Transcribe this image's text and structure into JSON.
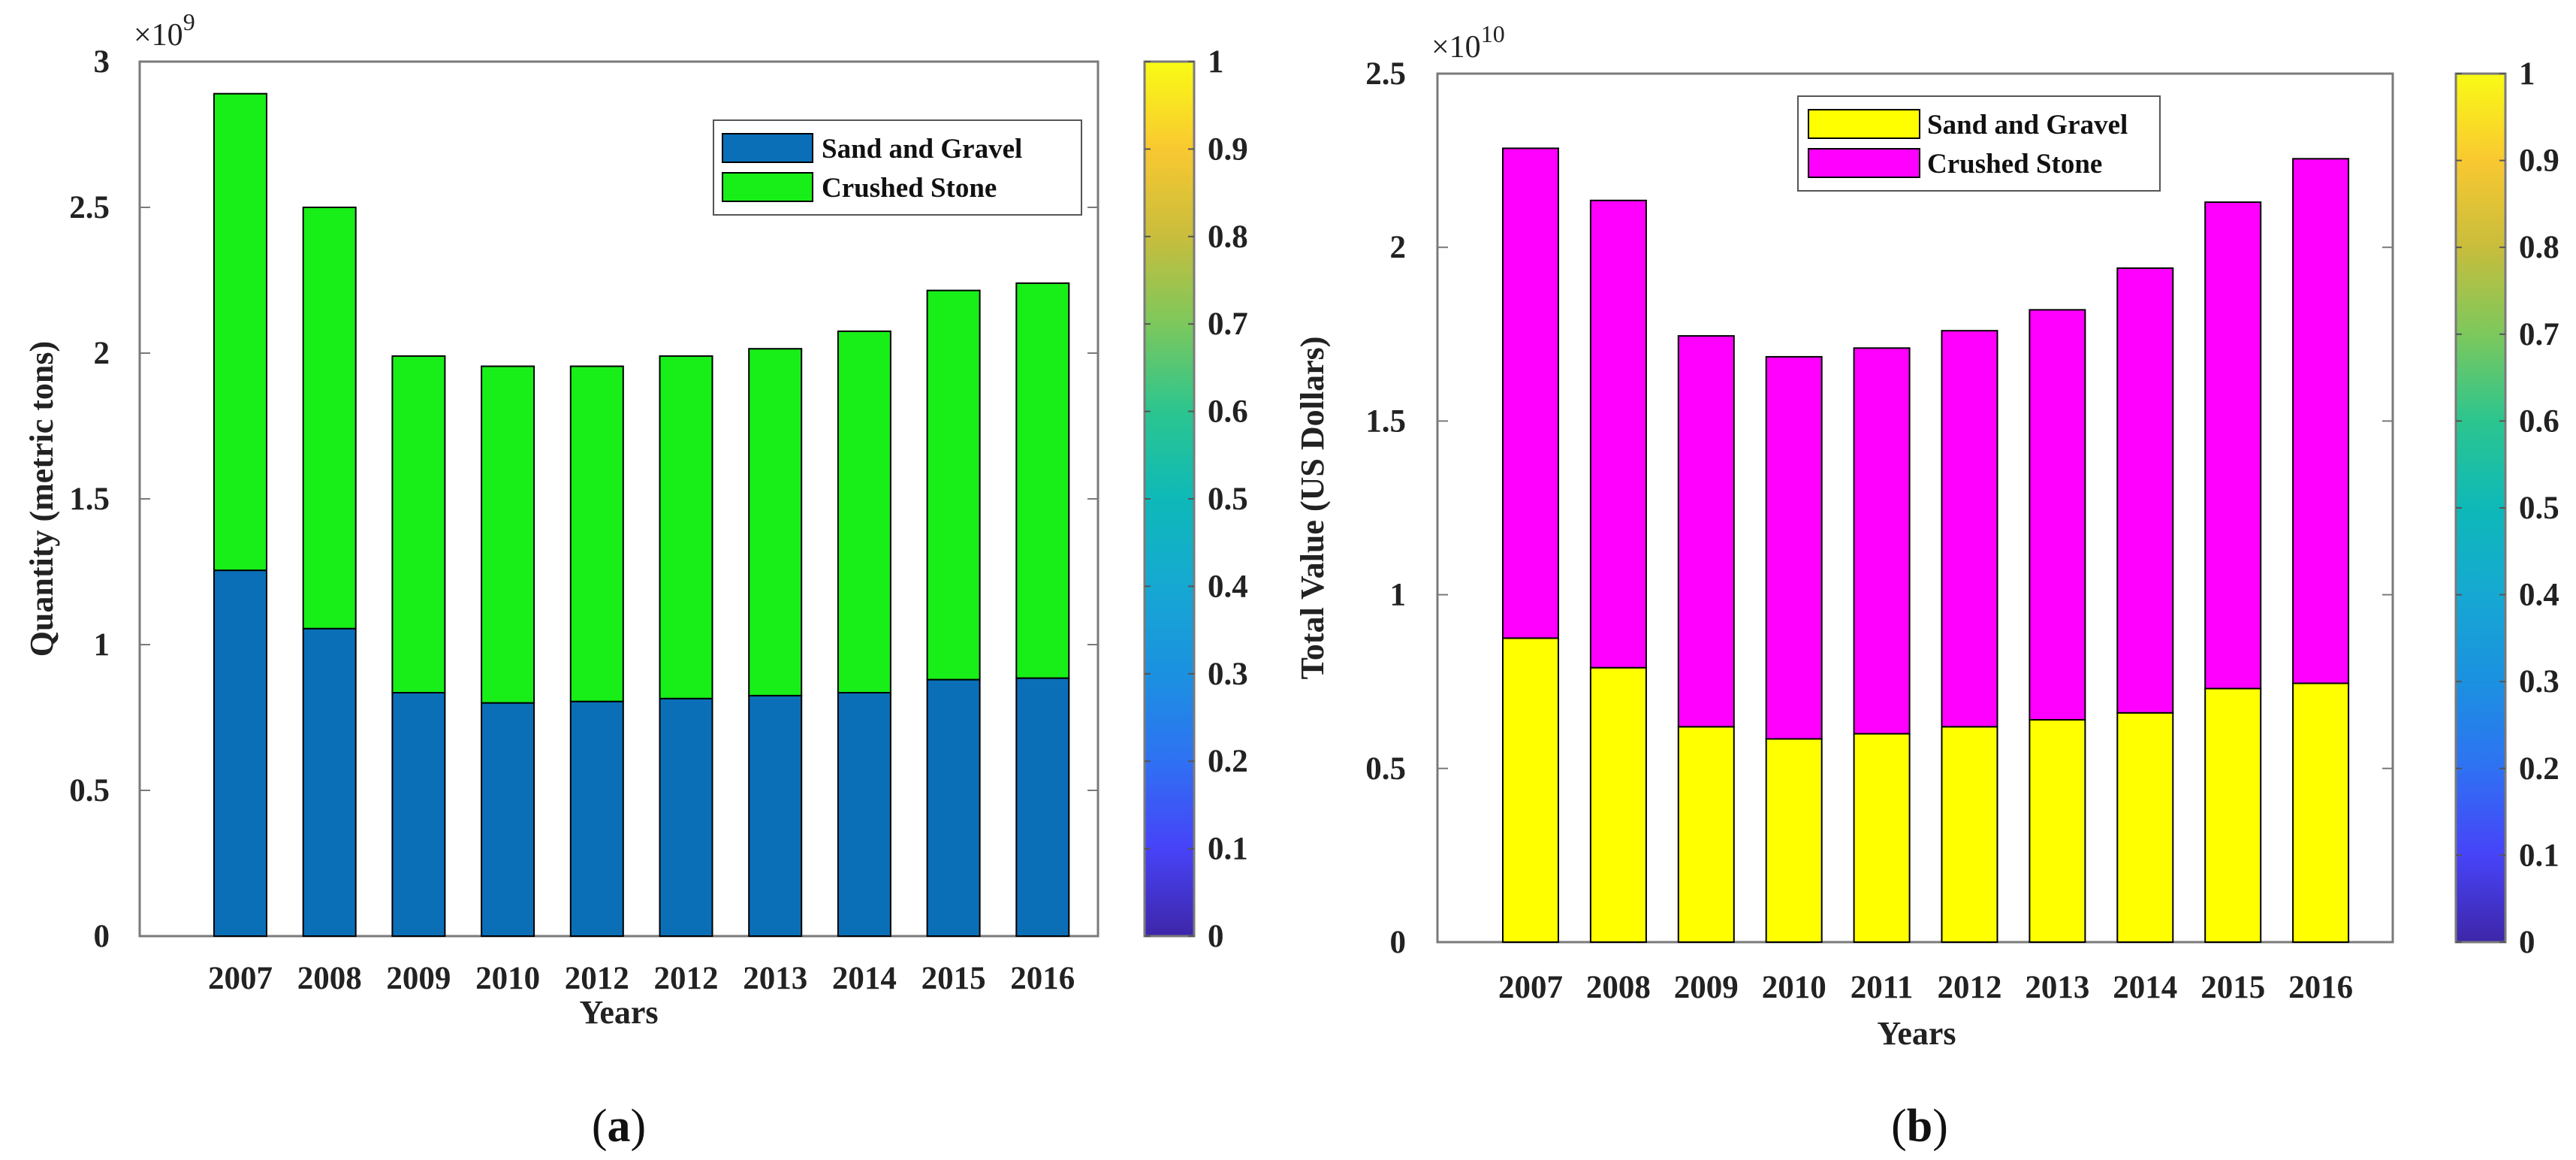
{
  "chart_data": [
    {
      "type": "bar",
      "stacked": true,
      "caption_open": "(",
      "caption_letter": "a",
      "caption_close": ")",
      "title": "",
      "xlabel": "Years",
      "ylabel": "Quantity (metric tons)",
      "y_scale_label": "×10",
      "y_scale_exponent": "9",
      "ylim": [
        0,
        3
      ],
      "yticks": [
        "0",
        "0.5",
        "1",
        "1.5",
        "2",
        "2.5",
        "3"
      ],
      "categories": [
        "2007",
        "2008",
        "2009",
        "2010",
        "2012",
        "2012",
        "2013",
        "2014",
        "2015",
        "2016"
      ],
      "series": [
        {
          "name": "Sand and Gravel",
          "color": "#0b6fb8",
          "values": [
            1.255,
            1.055,
            0.835,
            0.8,
            0.805,
            0.815,
            0.825,
            0.835,
            0.88,
            0.885
          ]
        },
        {
          "name": "Crushed Stone",
          "color": "#18ee18",
          "values": [
            1.635,
            1.445,
            1.155,
            1.155,
            1.15,
            1.175,
            1.19,
            1.24,
            1.335,
            1.355
          ]
        }
      ],
      "legend_position": "top-right",
      "colorbar": {
        "ticks": [
          "0",
          "0.1",
          "0.2",
          "0.3",
          "0.4",
          "0.5",
          "0.6",
          "0.7",
          "0.8",
          "0.9",
          "1"
        ]
      }
    },
    {
      "type": "bar",
      "stacked": true,
      "caption_open": "(",
      "caption_letter": "b",
      "caption_close": ")",
      "title": "",
      "xlabel": "Years",
      "ylabel": "Total Value (US Dollars)",
      "y_scale_label": "×10",
      "y_scale_exponent": "10",
      "ylim": [
        0,
        2.5
      ],
      "yticks": [
        "0",
        "0.5",
        "1",
        "1.5",
        "2",
        "2.5"
      ],
      "categories": [
        "2007",
        "2008",
        "2009",
        "2010",
        "2011",
        "2012",
        "2013",
        "2014",
        "2015",
        "2016"
      ],
      "series": [
        {
          "name": "Sand and Gravel",
          "color": "#ffff00",
          "values": [
            0.875,
            0.79,
            0.62,
            0.585,
            0.6,
            0.62,
            0.64,
            0.66,
            0.73,
            0.745
          ]
        },
        {
          "name": "Crushed Stone",
          "color": "#ff00ff",
          "values": [
            1.41,
            1.345,
            1.125,
            1.1,
            1.11,
            1.14,
            1.18,
            1.28,
            1.4,
            1.51
          ]
        }
      ],
      "legend_position": "top",
      "colorbar": {
        "ticks": [
          "0",
          "0.1",
          "0.2",
          "0.3",
          "0.4",
          "0.5",
          "0.6",
          "0.7",
          "0.8",
          "0.9",
          "1"
        ]
      }
    }
  ]
}
